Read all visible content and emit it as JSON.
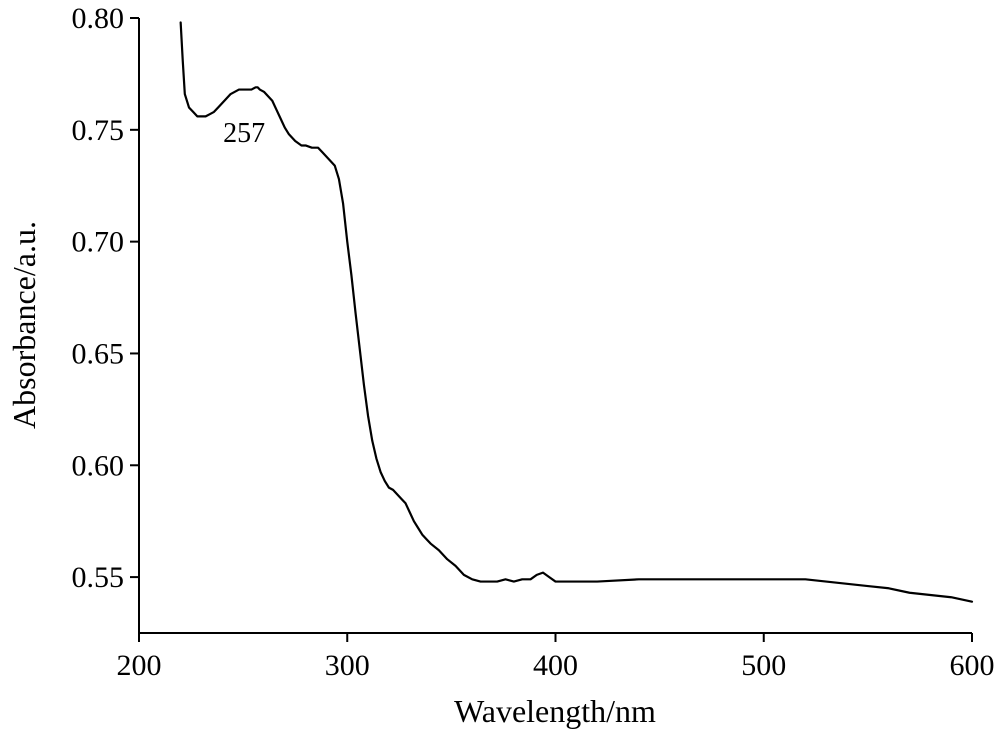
{
  "chart_data": {
    "type": "line",
    "title": "",
    "xlabel": "Wavelength/nm",
    "ylabel": "Absorbance/a.u.",
    "xlim": [
      200,
      600
    ],
    "ylim": [
      0.525,
      0.8
    ],
    "xticks": [
      200,
      300,
      400,
      500,
      600
    ],
    "xtick_labels": [
      "200",
      "300",
      "400",
      "500",
      "600"
    ],
    "yticks": [
      0.55,
      0.6,
      0.65,
      0.7,
      0.75,
      0.8
    ],
    "ytick_labels": [
      "0.55",
      "0.60",
      "0.65",
      "0.70",
      "0.75",
      "0.80"
    ],
    "grid": false,
    "legend": "none",
    "line_color": "#000000",
    "annotations": [
      {
        "text": "257",
        "x": 250.5,
        "y": 0.7445
      }
    ],
    "series": [
      {
        "x": [
          220,
          221,
          222,
          224,
          226,
          228,
          230,
          232,
          234,
          236,
          238,
          240,
          242,
          244,
          246,
          248,
          250,
          252,
          254,
          256,
          257,
          258,
          260,
          262,
          264,
          266,
          268,
          270,
          272,
          275,
          278,
          280,
          283,
          286,
          288,
          290,
          292,
          294,
          296,
          298,
          300,
          302,
          304,
          306,
          308,
          310,
          312,
          314,
          316,
          318,
          320,
          322,
          324,
          326,
          328,
          330,
          332,
          334,
          336,
          338,
          340,
          344,
          348,
          352,
          356,
          360,
          364,
          368,
          372,
          376,
          380,
          384,
          388,
          391,
          394,
          397,
          400,
          420,
          440,
          460,
          480,
          500,
          520,
          530,
          540,
          550,
          560,
          570,
          580,
          590,
          600
        ],
        "y": [
          0.798,
          0.781,
          0.766,
          0.76,
          0.758,
          0.756,
          0.756,
          0.756,
          0.757,
          0.758,
          0.76,
          0.762,
          0.764,
          0.766,
          0.767,
          0.768,
          0.768,
          0.768,
          0.768,
          0.769,
          0.769,
          0.768,
          0.767,
          0.765,
          0.763,
          0.759,
          0.755,
          0.751,
          0.748,
          0.745,
          0.743,
          0.743,
          0.742,
          0.742,
          0.74,
          0.738,
          0.736,
          0.734,
          0.728,
          0.717,
          0.7,
          0.685,
          0.668,
          0.652,
          0.636,
          0.622,
          0.611,
          0.603,
          0.597,
          0.593,
          0.59,
          0.589,
          0.587,
          0.585,
          0.583,
          0.579,
          0.575,
          0.572,
          0.569,
          0.567,
          0.565,
          0.562,
          0.558,
          0.555,
          0.551,
          0.549,
          0.548,
          0.548,
          0.548,
          0.549,
          0.548,
          0.549,
          0.549,
          0.551,
          0.552,
          0.55,
          0.548,
          0.548,
          0.549,
          0.549,
          0.549,
          0.549,
          0.549,
          0.548,
          0.547,
          0.546,
          0.545,
          0.543,
          0.542,
          0.541,
          0.539
        ]
      }
    ]
  }
}
